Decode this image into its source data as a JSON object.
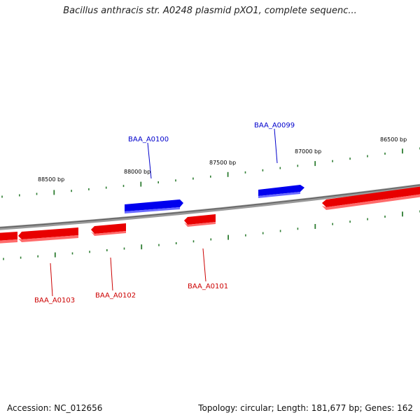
{
  "header": {
    "title": "Bacillus anthracis str. A0248 plasmid pXO1, complete sequenc..."
  },
  "footer": {
    "accession": "Accession: NC_012656",
    "topology": "Topology: circular; Length: 181,677 bp; Genes: 162"
  },
  "colors": {
    "forward_gene": "#0000ee",
    "reverse_gene": "#ee0000",
    "backbone": "#808080",
    "tick": "#2e7d32",
    "label_text": "#000000"
  },
  "map": {
    "scale_ticks": [
      {
        "label": "88500 bp"
      },
      {
        "label": "88000 bp"
      },
      {
        "label": "87500 bp"
      },
      {
        "label": "87000 bp"
      },
      {
        "label": "86500 bp"
      }
    ],
    "genes": [
      {
        "name": "BAA_A0100",
        "strand": "forward"
      },
      {
        "name": "BAA_A0099",
        "strand": "forward"
      },
      {
        "name": "BAA_A0103",
        "strand": "reverse"
      },
      {
        "name": "BAA_A0102",
        "strand": "reverse"
      },
      {
        "name": "BAA_A0101",
        "strand": "reverse"
      }
    ]
  }
}
